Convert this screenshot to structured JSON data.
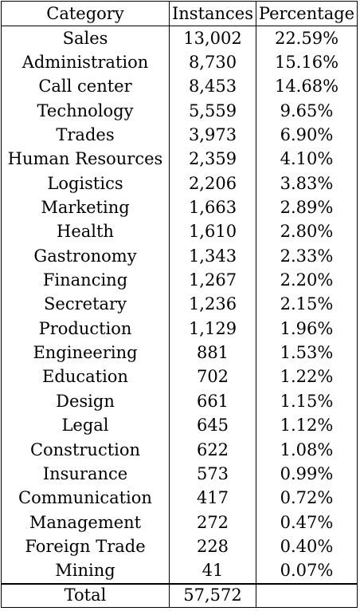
{
  "table": {
    "headers": [
      "Category",
      "Instances",
      "Percentage"
    ],
    "rows": [
      [
        "Sales",
        "13,002",
        "22.59%"
      ],
      [
        "Administration",
        "8,730",
        "15.16%"
      ],
      [
        "Call center",
        "8,453",
        "14.68%"
      ],
      [
        "Technology",
        "5,559",
        "9.65%"
      ],
      [
        "Trades",
        "3,973",
        "6.90%"
      ],
      [
        "Human Resources",
        "2,359",
        "4.10%"
      ],
      [
        "Logistics",
        "2,206",
        "3.83%"
      ],
      [
        "Marketing",
        "1,663",
        "2.89%"
      ],
      [
        "Health",
        "1,610",
        "2.80%"
      ],
      [
        "Gastronomy",
        "1,343",
        "2.33%"
      ],
      [
        "Financing",
        "1,267",
        "2.20%"
      ],
      [
        "Secretary",
        "1,236",
        "2.15%"
      ],
      [
        "Production",
        "1,129",
        "1.96%"
      ],
      [
        "Engineering",
        "881",
        "1.53%"
      ],
      [
        "Education",
        "702",
        "1.22%"
      ],
      [
        "Design",
        "661",
        "1.15%"
      ],
      [
        "Legal",
        "645",
        "1.12%"
      ],
      [
        "Construction",
        "622",
        "1.08%"
      ],
      [
        "Insurance",
        "573",
        "0.99%"
      ],
      [
        "Communication",
        "417",
        "0.72%"
      ],
      [
        "Management",
        "272",
        "0.47%"
      ],
      [
        "Foreign Trade",
        "228",
        "0.40%"
      ],
      [
        "Mining",
        "41",
        "0.07%"
      ]
    ],
    "total": [
      "Total",
      "57,572",
      ""
    ]
  }
}
